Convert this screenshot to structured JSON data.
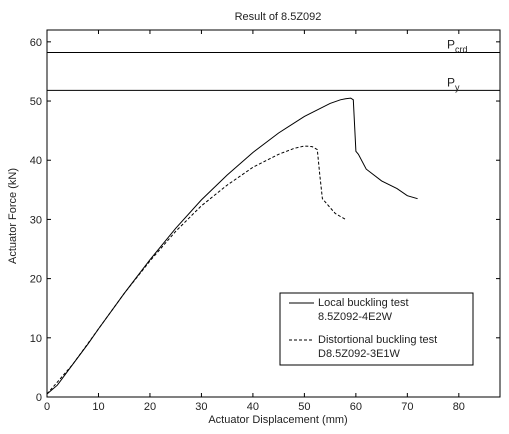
{
  "chart_data": {
    "type": "line",
    "title": "Result of 8.5Z092",
    "xlabel": "Actuator Displacement (mm)",
    "ylabel": "Actuator Force (kN)",
    "xlim": [
      0,
      88
    ],
    "ylim": [
      0,
      62
    ],
    "xticks": [
      0,
      10,
      20,
      30,
      40,
      50,
      60,
      70,
      80
    ],
    "yticks": [
      0,
      10,
      20,
      30,
      40,
      50,
      60
    ],
    "grid": false,
    "legend_position": "bottom-right",
    "reference_lines": [
      {
        "label_main": "P",
        "label_sub": "crd",
        "y": 58.2
      },
      {
        "label_main": "P",
        "label_sub": "y",
        "y": 51.8
      }
    ],
    "series": [
      {
        "name": "Local buckling test\n8.5Z092-4E2W",
        "line_style": "solid",
        "color": "#000000",
        "x": [
          0,
          2,
          5,
          8,
          10,
          15,
          20,
          25,
          30,
          35,
          40,
          45,
          50,
          55,
          57,
          58,
          59,
          59.5,
          60,
          60.5,
          62,
          65,
          68,
          70,
          72
        ],
        "y": [
          0.5,
          2,
          5.5,
          9,
          11.5,
          17.5,
          23.2,
          28.5,
          33.3,
          37.5,
          41.3,
          44.6,
          47.4,
          49.6,
          50.2,
          50.4,
          50.5,
          50.2,
          41.5,
          41.0,
          38.5,
          36.5,
          35.2,
          34.0,
          33.5
        ]
      },
      {
        "name": "Distortional buckling test\nD8.5Z092-3E1W",
        "line_style": "dashed",
        "color": "#000000",
        "x": [
          0,
          5,
          10,
          15,
          20,
          25,
          30,
          35,
          40,
          45,
          48,
          50,
          51.5,
          52.5,
          53,
          53.5,
          54,
          55,
          56,
          57,
          58
        ],
        "y": [
          0.5,
          5.5,
          11.5,
          17.5,
          23,
          28,
          32.3,
          35.8,
          38.8,
          41.0,
          42.0,
          42.4,
          42.3,
          41.8,
          37.5,
          33.5,
          33.0,
          32.0,
          31.0,
          30.5,
          30.0
        ]
      }
    ]
  }
}
